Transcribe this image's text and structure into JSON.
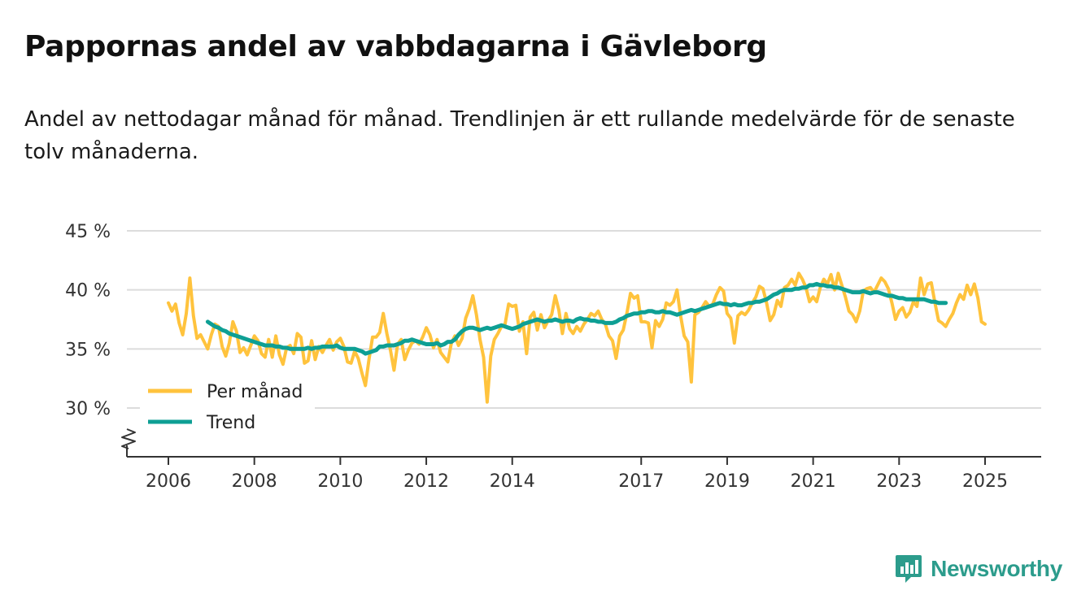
{
  "colors": {
    "monthly": "#FFC33D",
    "trend": "#0E9F94",
    "grid": "#dcdcdc",
    "axis": "#333333",
    "brand": "#2C9C8C"
  },
  "brand": {
    "name": "Newsworthy",
    "icon": "newsworthy-logo-icon"
  },
  "chart_data": {
    "type": "line",
    "title": "Pappornas andel av vabbdagarna i Gävleborg",
    "subtitle": "Andel av nettodagar månad för månad. Trendlinjen är ett rullande medelvärde för de senaste tolv månaderna.",
    "ylim": [
      26,
      45
    ],
    "y_ticks": [
      {
        "value": 45,
        "label": "45 %"
      },
      {
        "value": 40,
        "label": "40 %"
      },
      {
        "value": 35,
        "label": "35 %"
      },
      {
        "value": 30,
        "label": "30 %"
      }
    ],
    "x_ticks": [
      {
        "year": 2006,
        "label": "2006"
      },
      {
        "year": 2008,
        "label": "2008"
      },
      {
        "year": 2010,
        "label": "2010"
      },
      {
        "year": 2012,
        "label": "2012"
      },
      {
        "year": 2014,
        "label": "2014"
      },
      {
        "year": 2017,
        "label": "2017"
      },
      {
        "year": 2019,
        "label": "2019"
      },
      {
        "year": 2021,
        "label": "2021"
      },
      {
        "year": 2023,
        "label": "2023"
      },
      {
        "year": 2025,
        "label": "2025"
      }
    ],
    "xlim": [
      2005,
      2026.3
    ],
    "legend": {
      "position": "bottom-left",
      "entries": [
        "Per månad",
        "Trend"
      ]
    },
    "series": [
      {
        "name": "Per månad",
        "start": 2006.0,
        "step": 0.0833333,
        "values": [
          38.9,
          38.2,
          38.8,
          37.2,
          36.2,
          38.0,
          41.0,
          37.8,
          35.9,
          36.2,
          35.6,
          35.0,
          36.2,
          37.1,
          36.9,
          35.2,
          34.4,
          35.5,
          37.3,
          36.5,
          34.7,
          35.1,
          34.5,
          35.3,
          36.1,
          35.7,
          34.6,
          34.3,
          35.8,
          34.3,
          36.1,
          34.5,
          33.7,
          35.1,
          35.3,
          34.6,
          36.3,
          36.0,
          33.8,
          34.0,
          35.7,
          34.1,
          35.2,
          34.7,
          35.3,
          35.8,
          34.9,
          35.6,
          35.9,
          35.2,
          33.9,
          33.8,
          34.8,
          34.2,
          33.0,
          31.9,
          34.1,
          36.0,
          36.0,
          36.4,
          38.0,
          36.3,
          34.9,
          33.2,
          35.4,
          35.8,
          34.1,
          34.9,
          35.5,
          35.7,
          35.4,
          36.0,
          36.8,
          36.2,
          35.1,
          35.8,
          34.7,
          34.3,
          33.9,
          35.5,
          36.1,
          35.3,
          35.9,
          37.6,
          38.4,
          39.5,
          37.9,
          35.8,
          34.3,
          30.5,
          34.4,
          35.8,
          36.3,
          36.9,
          37.1,
          38.8,
          38.6,
          38.7,
          36.5,
          37.3,
          34.6,
          37.7,
          38.1,
          36.6,
          37.9,
          36.8,
          37.4,
          37.9,
          39.5,
          38.3,
          36.3,
          38.0,
          36.7,
          36.3,
          36.9,
          36.5,
          37.1,
          37.5,
          38.0,
          37.8,
          38.2,
          37.5,
          37.1,
          36.1,
          35.7,
          34.2,
          36.1,
          36.6,
          38.0,
          39.7,
          39.3,
          39.5,
          37.3,
          37.3,
          37.2,
          35.1,
          37.4,
          36.9,
          37.5,
          38.9,
          38.7,
          39.0,
          40.0,
          37.8,
          36.1,
          35.6,
          32.2,
          37.9,
          38.1,
          38.5,
          39.0,
          38.6,
          38.8,
          39.6,
          40.2,
          39.9,
          38.0,
          37.6,
          35.5,
          37.8,
          38.1,
          37.9,
          38.3,
          38.9,
          39.4,
          40.3,
          40.1,
          38.9,
          37.4,
          37.9,
          39.1,
          38.6,
          40.2,
          40.4,
          40.9,
          40.4,
          41.4,
          40.9,
          40.2,
          39.0,
          39.4,
          39.0,
          40.2,
          40.9,
          40.5,
          41.3,
          40.0,
          41.4,
          40.4,
          39.4,
          38.2,
          37.9,
          37.3,
          38.2,
          39.9,
          40.1,
          40.2,
          39.8,
          40.4,
          41.0,
          40.7,
          40.1,
          38.9,
          37.5,
          38.2,
          38.5,
          37.7,
          38.1,
          39.0,
          38.6,
          41.0,
          39.6,
          40.5,
          40.6,
          38.9,
          37.4,
          37.2,
          36.9,
          37.5,
          38.0,
          38.9,
          39.6,
          39.2,
          40.4,
          39.6,
          40.5,
          39.3,
          37.3,
          37.1
        ]
      },
      {
        "name": "Trend",
        "start": 2006.9167,
        "step": 0.0833333,
        "values": [
          37.3,
          37.1,
          36.9,
          36.8,
          36.6,
          36.5,
          36.3,
          36.2,
          36.1,
          36.0,
          35.9,
          35.8,
          35.7,
          35.6,
          35.5,
          35.4,
          35.3,
          35.3,
          35.3,
          35.2,
          35.2,
          35.1,
          35.1,
          35.0,
          35.0,
          35.0,
          35.0,
          35.0,
          35.1,
          35.0,
          35.1,
          35.1,
          35.2,
          35.2,
          35.2,
          35.2,
          35.3,
          35.1,
          35.0,
          35.0,
          35.0,
          35.0,
          34.9,
          34.8,
          34.6,
          34.7,
          34.8,
          34.9,
          35.2,
          35.2,
          35.3,
          35.3,
          35.3,
          35.4,
          35.5,
          35.7,
          35.7,
          35.8,
          35.7,
          35.6,
          35.5,
          35.4,
          35.4,
          35.4,
          35.5,
          35.3,
          35.4,
          35.6,
          35.6,
          35.8,
          36.2,
          36.5,
          36.7,
          36.8,
          36.8,
          36.7,
          36.6,
          36.7,
          36.8,
          36.7,
          36.8,
          36.9,
          37.0,
          36.9,
          36.8,
          36.7,
          36.8,
          36.9,
          37.1,
          37.2,
          37.3,
          37.4,
          37.5,
          37.4,
          37.3,
          37.4,
          37.4,
          37.5,
          37.4,
          37.3,
          37.4,
          37.4,
          37.3,
          37.5,
          37.6,
          37.5,
          37.5,
          37.4,
          37.4,
          37.3,
          37.3,
          37.2,
          37.2,
          37.2,
          37.3,
          37.5,
          37.6,
          37.8,
          37.9,
          38.0,
          38.0,
          38.1,
          38.1,
          38.2,
          38.2,
          38.1,
          38.1,
          38.2,
          38.1,
          38.1,
          38.0,
          37.9,
          38.0,
          38.1,
          38.2,
          38.3,
          38.2,
          38.3,
          38.4,
          38.5,
          38.6,
          38.7,
          38.8,
          38.9,
          38.8,
          38.8,
          38.7,
          38.8,
          38.7,
          38.7,
          38.8,
          38.9,
          38.9,
          39.0,
          39.0,
          39.1,
          39.2,
          39.4,
          39.6,
          39.7,
          39.9,
          40.0,
          40.0,
          40.0,
          40.1,
          40.1,
          40.2,
          40.2,
          40.4,
          40.4,
          40.5,
          40.4,
          40.4,
          40.3,
          40.3,
          40.2,
          40.2,
          40.1,
          40.0,
          39.9,
          39.8,
          39.8,
          39.8,
          39.9,
          39.8,
          39.7,
          39.8,
          39.8,
          39.7,
          39.6,
          39.5,
          39.5,
          39.4,
          39.3,
          39.3,
          39.2,
          39.2,
          39.2,
          39.2,
          39.2,
          39.2,
          39.1,
          39.0,
          39.0,
          38.9,
          38.9,
          38.9
        ]
      }
    ]
  }
}
